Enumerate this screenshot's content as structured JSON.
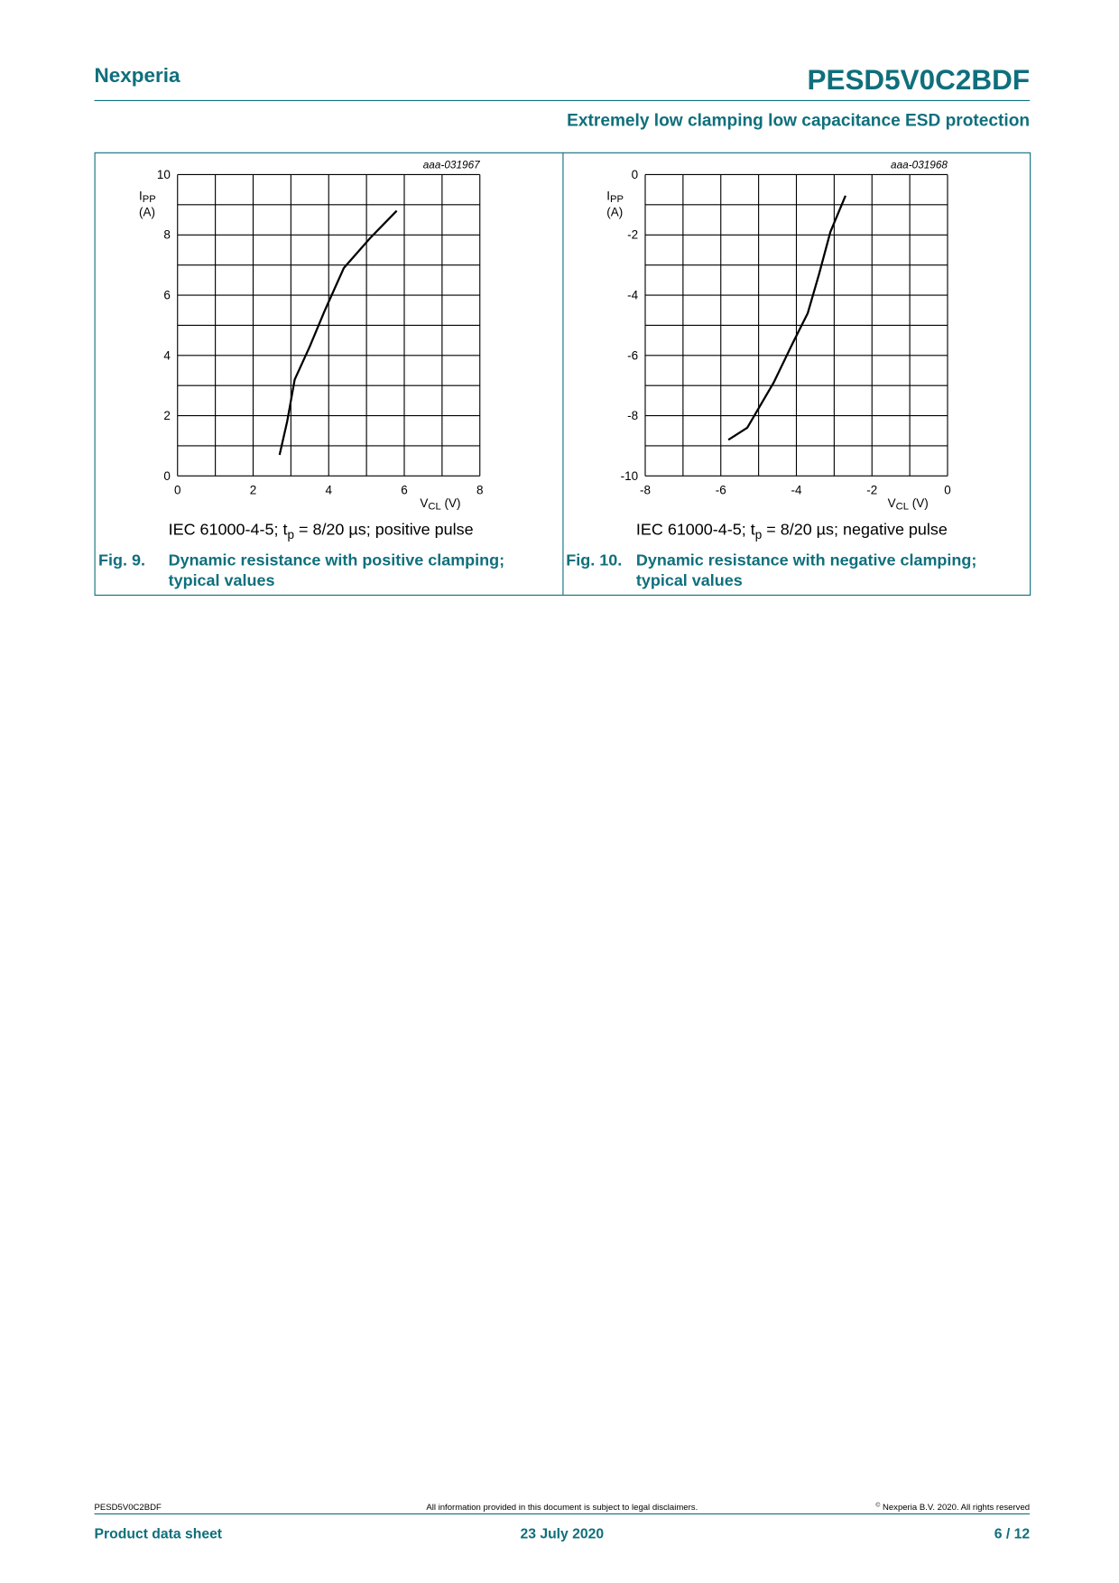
{
  "header": {
    "brand": "Nexperia",
    "product": "PESD5V0C2BDF",
    "subtitle": "Extremely low clamping low capacitance ESD protection"
  },
  "chart_data": [
    {
      "type": "line",
      "code": "aaa-031967",
      "ylabel": [
        "I",
        "PP"
      ],
      "ylabel_unit": "(A)",
      "xlabel": [
        "V",
        "CL",
        " (V)"
      ],
      "xlim": [
        0,
        8
      ],
      "xticks": [
        0,
        2,
        4,
        6,
        8
      ],
      "ylim": [
        0,
        10
      ],
      "yticks": [
        0,
        2,
        4,
        6,
        8,
        10
      ],
      "grid": true,
      "series": [
        {
          "color": "#000000",
          "x": [
            2.7,
            2.9,
            3.1,
            3.5,
            3.9,
            4.4,
            5.1,
            5.8
          ],
          "values": [
            0.7,
            1.8,
            3.2,
            4.3,
            5.5,
            6.9,
            7.9,
            8.8
          ]
        }
      ],
      "condition": [
        "IEC 61000-4-5; t",
        "p",
        " = 8/20 µs; positive pulse"
      ],
      "figure_label": "Fig. 9.",
      "title_lines": [
        "Dynamic resistance with positive clamping;",
        "typical values"
      ]
    },
    {
      "type": "line",
      "code": "aaa-031968",
      "ylabel": [
        "I",
        "PP"
      ],
      "ylabel_unit": "(A)",
      "xlabel": [
        "V",
        "CL",
        " (V)"
      ],
      "xlim": [
        -8,
        0
      ],
      "xticks": [
        -8,
        -6,
        -4,
        -2,
        0
      ],
      "ylim": [
        -10,
        0
      ],
      "yticks": [
        -10,
        -8,
        -6,
        -4,
        -2,
        0
      ],
      "grid": true,
      "series": [
        {
          "color": "#000000",
          "x": [
            -5.8,
            -5.3,
            -4.6,
            -4.1,
            -3.7,
            -3.4,
            -3.1,
            -2.7
          ],
          "values": [
            -8.8,
            -8.4,
            -6.9,
            -5.6,
            -4.6,
            -3.3,
            -1.9,
            -0.7
          ]
        }
      ],
      "condition": [
        "IEC 61000-4-5; t",
        "p",
        " = 8/20 µs; negative pulse"
      ],
      "figure_label": "Fig. 10.",
      "title_lines": [
        "Dynamic resistance with negative clamping;",
        "typical values"
      ]
    }
  ],
  "footer": {
    "doc_id": "PESD5V0C2BDF",
    "disclaimer": "All information provided in this document is subject to legal disclaimers.",
    "copyright_mark": "©",
    "copyright": " Nexperia B.V. 2020. All rights reserved",
    "doc_type": "Product data sheet",
    "date": "23 July 2020",
    "page": "6 / 12"
  }
}
